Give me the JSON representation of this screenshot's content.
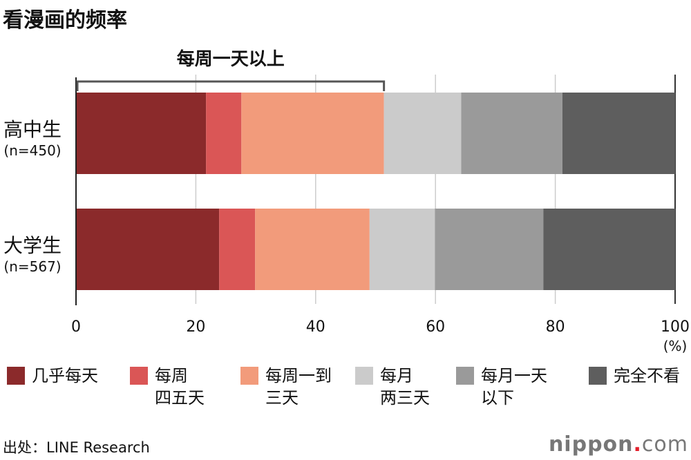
{
  "title": "看漫画的频率",
  "chart_data": {
    "type": "bar",
    "orientation": "horizontal-stacked-100",
    "title": "看漫画的频率",
    "categories": [
      {
        "label": "高中生",
        "n": "(n=450)"
      },
      {
        "label": "大学生",
        "n": "(n=567)"
      }
    ],
    "series": [
      {
        "name": "几乎每天",
        "color": "#8b2a2b",
        "values": [
          21.7,
          23.9
        ]
      },
      {
        "name": "每周四五天",
        "name_lines": [
          "每周",
          "四五天"
        ],
        "color": "#da5656",
        "values": [
          5.9,
          6.0
        ]
      },
      {
        "name": "每周一到三天",
        "name_lines": [
          "每周一到",
          "三天"
        ],
        "color": "#f29b7b",
        "values": [
          23.8,
          19.1
        ]
      },
      {
        "name": "每月两三天",
        "name_lines": [
          "每月",
          "两三天"
        ],
        "color": "#cbcbcb",
        "values": [
          12.9,
          10.9
        ]
      },
      {
        "name": "每月一天以下",
        "name_lines": [
          "每月一天",
          "以下"
        ],
        "color": "#9a9a9a",
        "values": [
          16.9,
          18.1
        ]
      },
      {
        "name": "完全不看",
        "name_lines": [
          "完全不看"
        ],
        "color": "#5e5e5e",
        "values": [
          18.8,
          22.0
        ]
      }
    ],
    "xlim": [
      0,
      100
    ],
    "xticks": [
      "0",
      "20",
      "40",
      "60",
      "80",
      "100"
    ],
    "xunit": "(%)",
    "grid": true,
    "legend_placement": "bottom",
    "annotation": {
      "text": "每周一天以上",
      "range_series": [
        0,
        2
      ]
    }
  },
  "source": "出处：LINE Research",
  "logo": {
    "main": "nippon",
    "dot": ".",
    "tld": "com"
  }
}
